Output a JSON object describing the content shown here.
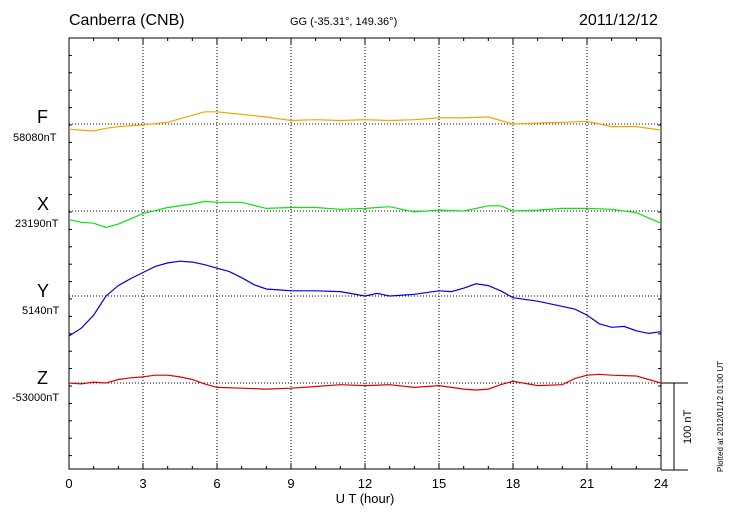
{
  "header": {
    "station": "Canberra (CNB)",
    "coords": "GG (-35.31°, 149.36°)",
    "date": "2011/12/12"
  },
  "scale_bar_label": "100 nT",
  "footnote": "Plotted at 2012/01/12 01:00 UT",
  "colors": {
    "F": "#f5a500",
    "X": "#10e010",
    "Y": "#0000e0",
    "Z": "#e00000"
  },
  "chart_data": {
    "type": "line",
    "xlabel": "U T (hour)",
    "xlim": [
      0,
      24
    ],
    "xticks": [
      "0",
      "3",
      "6",
      "9",
      "12",
      "15",
      "18",
      "21",
      "24"
    ],
    "grid": true,
    "series": [
      {
        "name": "F",
        "baseline_label": "58080nT",
        "x": [
          0,
          0.5,
          1,
          1.5,
          2,
          3,
          4,
          5,
          5.5,
          6,
          7,
          8,
          9,
          10,
          11,
          12,
          13,
          14,
          15,
          16,
          17,
          17.5,
          18,
          19,
          20,
          21,
          22,
          23,
          24
        ],
        "y": [
          58074,
          58073,
          58072,
          58075,
          58077,
          58079,
          58082,
          58090,
          58094,
          58094,
          58091,
          58088,
          58084,
          58085,
          58084,
          58085,
          58084,
          58085,
          58087,
          58087,
          58088,
          58084,
          58080,
          58081,
          58082,
          58083,
          58077,
          58077,
          58073
        ]
      },
      {
        "name": "X",
        "baseline_label": "23190nT",
        "x": [
          0,
          0.5,
          1,
          1.5,
          2,
          2.5,
          3,
          4,
          5,
          5.5,
          6,
          7,
          8,
          9,
          10,
          11,
          12,
          13,
          14,
          15,
          16,
          17,
          17.5,
          18,
          19,
          20,
          21,
          22,
          23,
          24
        ],
        "y": [
          23180,
          23177,
          23176,
          23171,
          23175,
          23181,
          23187,
          23194,
          23198,
          23201,
          23200,
          23200,
          23193,
          23194,
          23194,
          23192,
          23193,
          23195,
          23189,
          23191,
          23190,
          23196,
          23196,
          23190,
          23191,
          23193,
          23193,
          23192,
          23188,
          23176
        ]
      },
      {
        "name": "Y",
        "baseline_label": "5140nT",
        "x": [
          0,
          0.5,
          1,
          1.5,
          2,
          2.5,
          3,
          3.5,
          4,
          4.5,
          5,
          5.5,
          6,
          6.5,
          7,
          7.5,
          8,
          8.5,
          9,
          10,
          11,
          12,
          12.5,
          13,
          14,
          15,
          15.5,
          16,
          16.5,
          17,
          17.5,
          18,
          19,
          20,
          20.5,
          21,
          21.5,
          22,
          22.5,
          23,
          23.5,
          24
        ],
        "y": [
          5094,
          5103,
          5118,
          5140,
          5152,
          5160,
          5167,
          5174,
          5178,
          5180,
          5179,
          5176,
          5172,
          5168,
          5161,
          5153,
          5148,
          5147,
          5146,
          5146,
          5145,
          5140,
          5143,
          5140,
          5142,
          5146,
          5145,
          5149,
          5154,
          5152,
          5146,
          5138,
          5134,
          5128,
          5125,
          5118,
          5108,
          5104,
          5105,
          5100,
          5097,
          5099
        ]
      },
      {
        "name": "Z",
        "baseline_label": "-53000nT",
        "x": [
          0,
          0.5,
          1,
          1.5,
          2,
          2.5,
          3,
          3.5,
          4,
          4.5,
          5,
          5.5,
          6,
          7,
          8,
          9,
          10,
          11,
          12,
          13,
          14,
          15,
          16,
          16.5,
          17,
          17.5,
          18,
          19,
          20,
          20.5,
          21,
          21.5,
          22,
          23,
          24
        ],
        "y": [
          -53000,
          -53001,
          -52999,
          -53000,
          -52996,
          -52994,
          -52993,
          -52991,
          -52991,
          -52993,
          -52996,
          -53001,
          -53005,
          -53006,
          -53007,
          -53006,
          -53004,
          -53002,
          -53003,
          -53002,
          -53005,
          -53003,
          -53007,
          -53008,
          -53007,
          -53002,
          -52998,
          -53003,
          -53002,
          -52995,
          -52991,
          -52990,
          -52991,
          -52992,
          -53000
        ]
      }
    ]
  }
}
